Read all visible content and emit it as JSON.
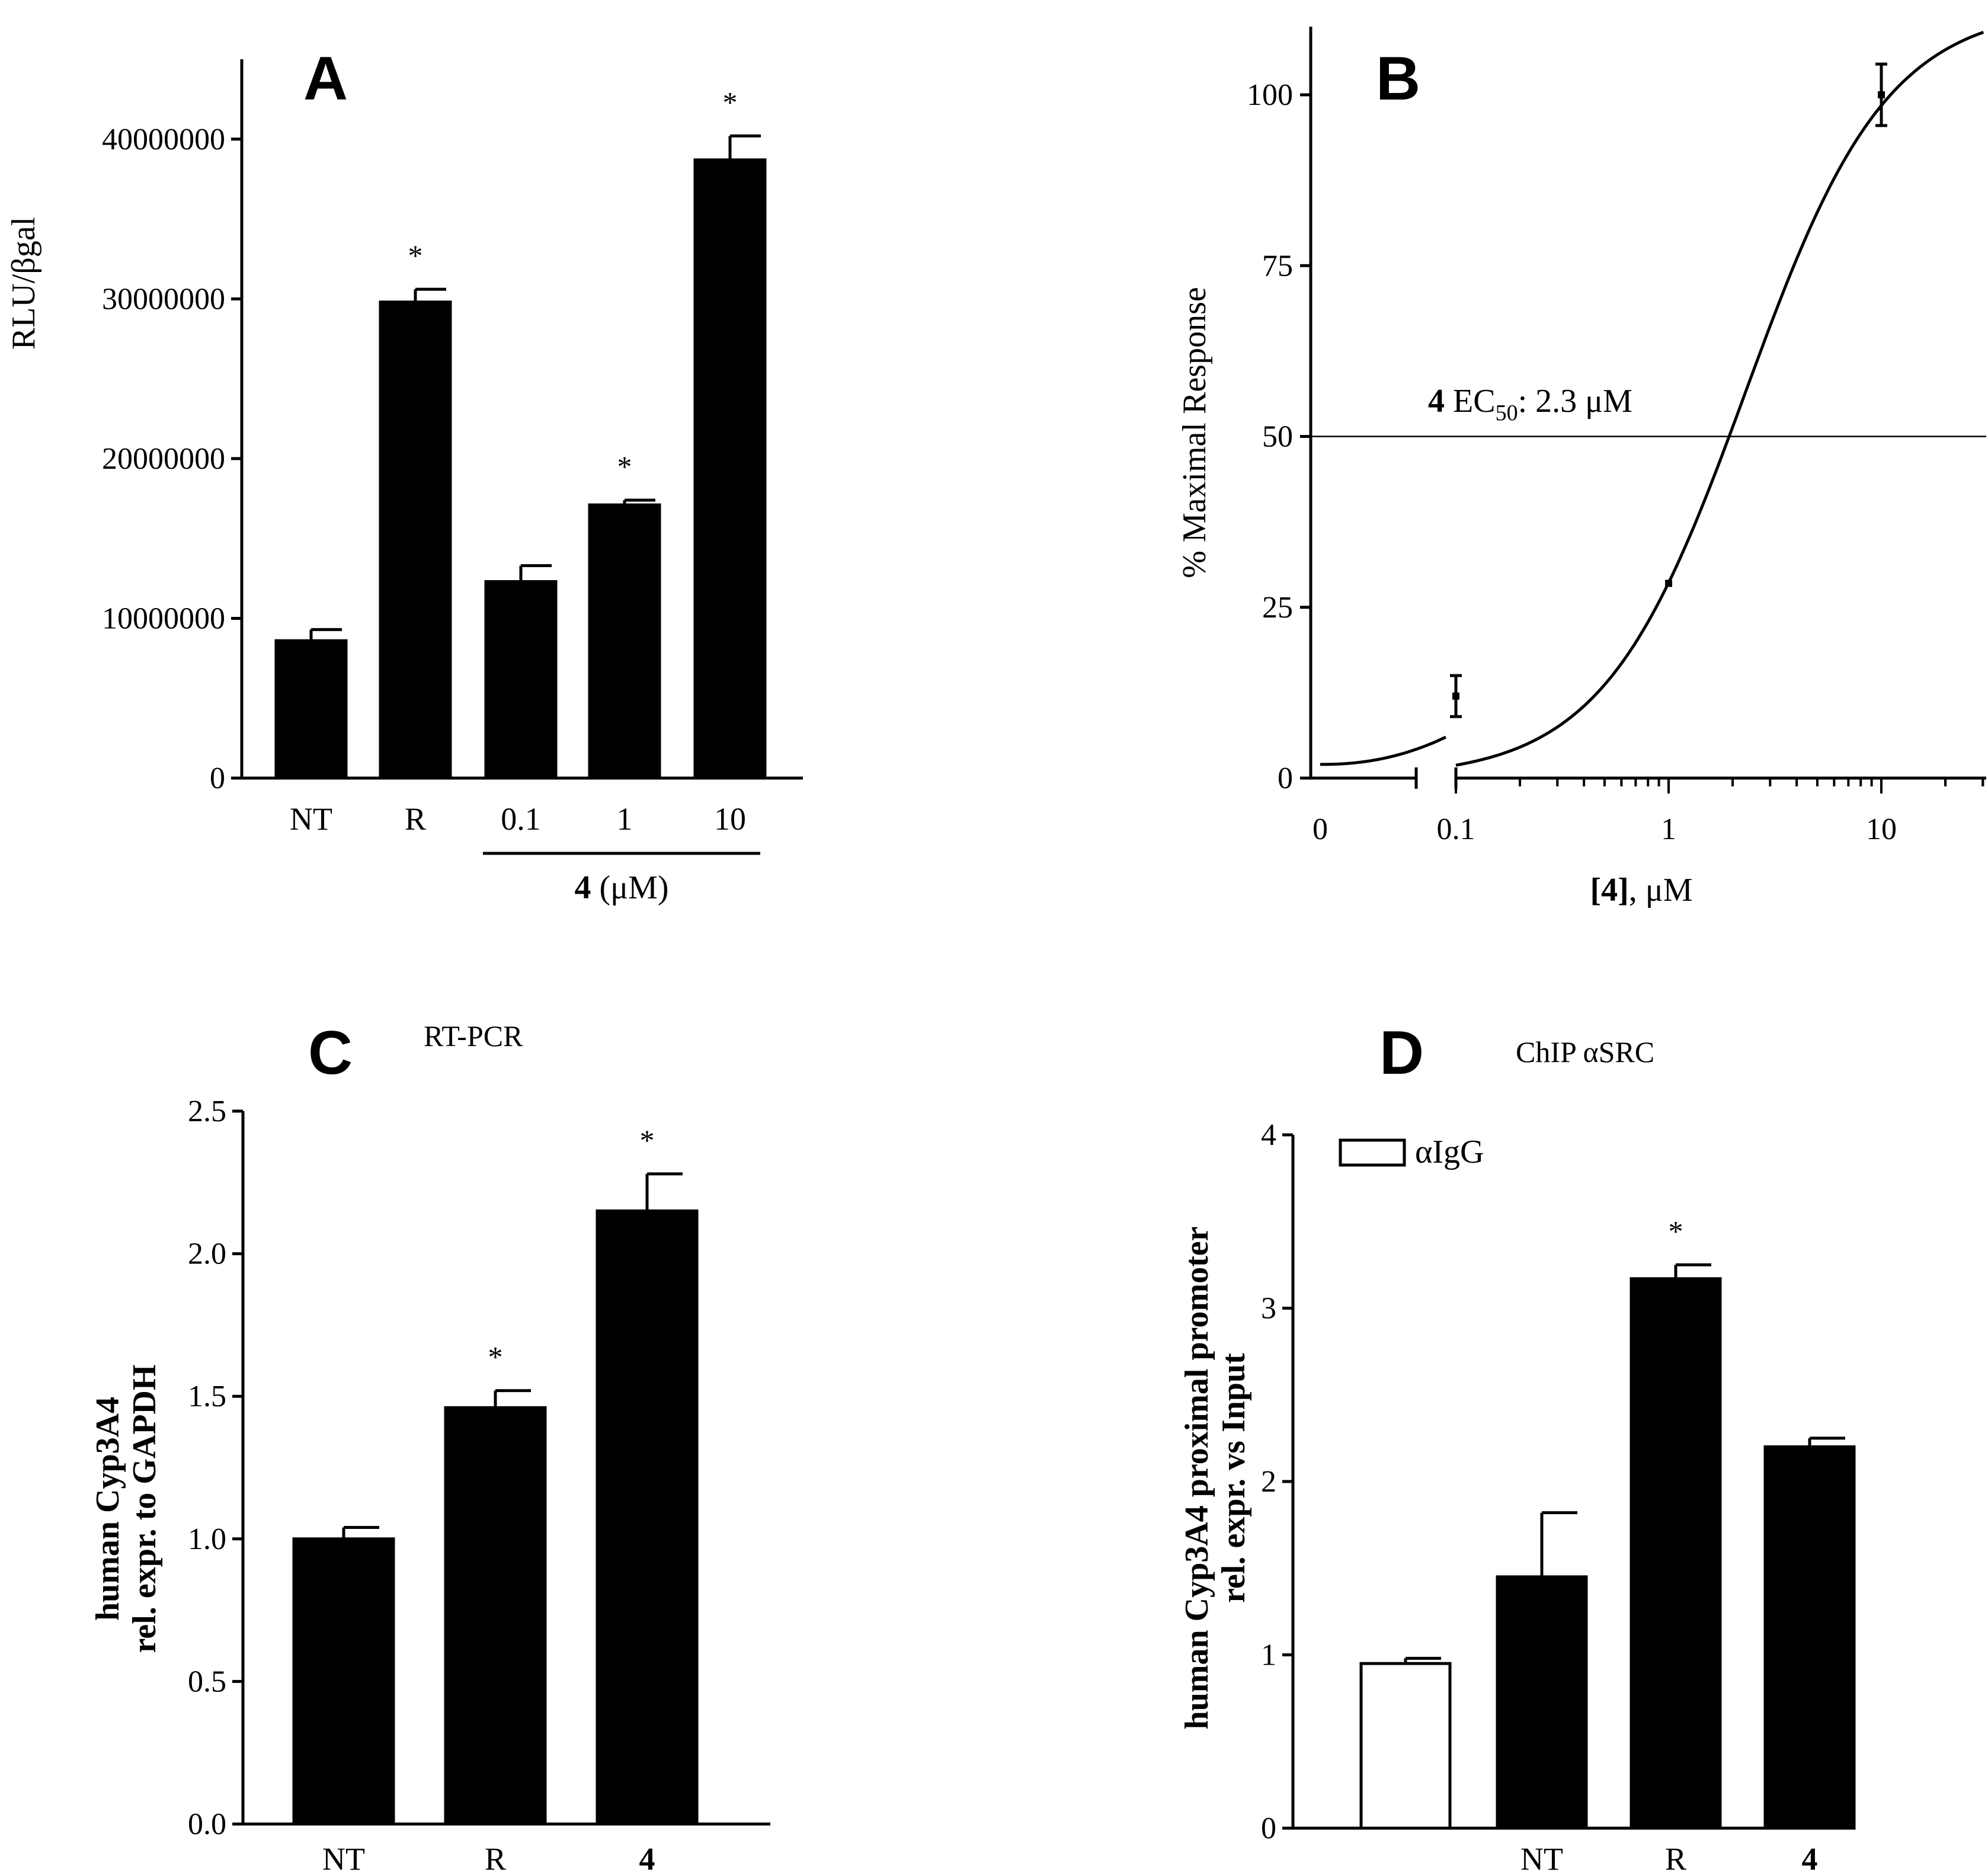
{
  "chart_data": [
    {
      "panel": "A",
      "type": "bar",
      "title": "A",
      "ylabel": "RLU/βgal",
      "categories": [
        "NT",
        "R",
        "0.1",
        "1",
        "10"
      ],
      "values": [
        8600000,
        29800000,
        12300000,
        17100000,
        38700000
      ],
      "errors": [
        700000,
        800000,
        1000000,
        300000,
        1500000
      ],
      "significant": [
        false,
        true,
        false,
        true,
        true
      ],
      "ylim": [
        0,
        45000000
      ],
      "yticks": [
        0,
        10000000,
        20000000,
        30000000,
        40000000
      ],
      "ytick_labels": [
        "0",
        "10000000",
        "20000000",
        "30000000",
        "40000000"
      ],
      "group_label_bold": "4",
      "group_label_rest": " (μM)",
      "significance_marker": "*"
    },
    {
      "panel": "B",
      "type": "scatter",
      "title": "B",
      "ylabel": "% Maximal Response",
      "xlabel_bold": "[4]",
      "xlabel_rest": ", μM",
      "xscale": "log (with broken axis for 0)",
      "xtick_labels": [
        "0",
        "0.1",
        "1",
        "10"
      ],
      "yticks": [
        0,
        25,
        50,
        75,
        100
      ],
      "ytick_labels": [
        "0",
        "25",
        "50",
        "75",
        "100"
      ],
      "ylim": [
        0,
        110
      ],
      "points": [
        {
          "x": 0.1,
          "y": 12,
          "err": 3
        },
        {
          "x": 1,
          "y": 28.5,
          "err": 0
        },
        {
          "x": 10,
          "y": 100,
          "err": 4.5
        }
      ],
      "curve": {
        "model": "sigmoidal dose-response",
        "bottom": 0,
        "top": 113,
        "ec50": 2.3,
        "hill": 1.3
      },
      "reference_line_y": 50,
      "annotation_bold": "4",
      "annotation_text": " EC",
      "annotation_sub": "50",
      "annotation_tail": ": 2.3 μM"
    },
    {
      "panel": "C",
      "type": "bar",
      "title": "C",
      "subtitle": "RT-PCR",
      "ylabel_line1": "human Cyp3A4",
      "ylabel_line2": "rel. expr. to GAPDH",
      "categories": [
        "NT",
        "R",
        "4"
      ],
      "values": [
        1.0,
        1.46,
        2.15
      ],
      "errors": [
        0.04,
        0.06,
        0.13
      ],
      "significant": [
        false,
        true,
        true
      ],
      "ylim": [
        0,
        2.5
      ],
      "yticks": [
        0,
        0.5,
        1.0,
        1.5,
        2.0,
        2.5
      ],
      "ytick_labels": [
        "0.0",
        "0.5",
        "1.0",
        "1.5",
        "2.0",
        "2.5"
      ],
      "significance_marker": "*"
    },
    {
      "panel": "D",
      "type": "bar",
      "title": "D",
      "subtitle": "ChIP αSRC",
      "ylabel_line1": "human Cyp3A4 proximal promoter",
      "ylabel_line2": "rel. expr. vs Input",
      "legend": "αIgG",
      "categories": [
        "",
        "NT",
        "R",
        "4"
      ],
      "values": [
        0.95,
        1.45,
        3.17,
        2.2
      ],
      "errors": [
        0.03,
        0.37,
        0.08,
        0.05
      ],
      "fills": [
        "#ffffff",
        "#000000",
        "#000000",
        "#000000"
      ],
      "significant": [
        false,
        false,
        true,
        false
      ],
      "ylim": [
        0,
        4
      ],
      "yticks": [
        0,
        1,
        2,
        3,
        4
      ],
      "ytick_labels": [
        "0",
        "1",
        "2",
        "3",
        "4"
      ],
      "significance_marker": "*"
    }
  ]
}
